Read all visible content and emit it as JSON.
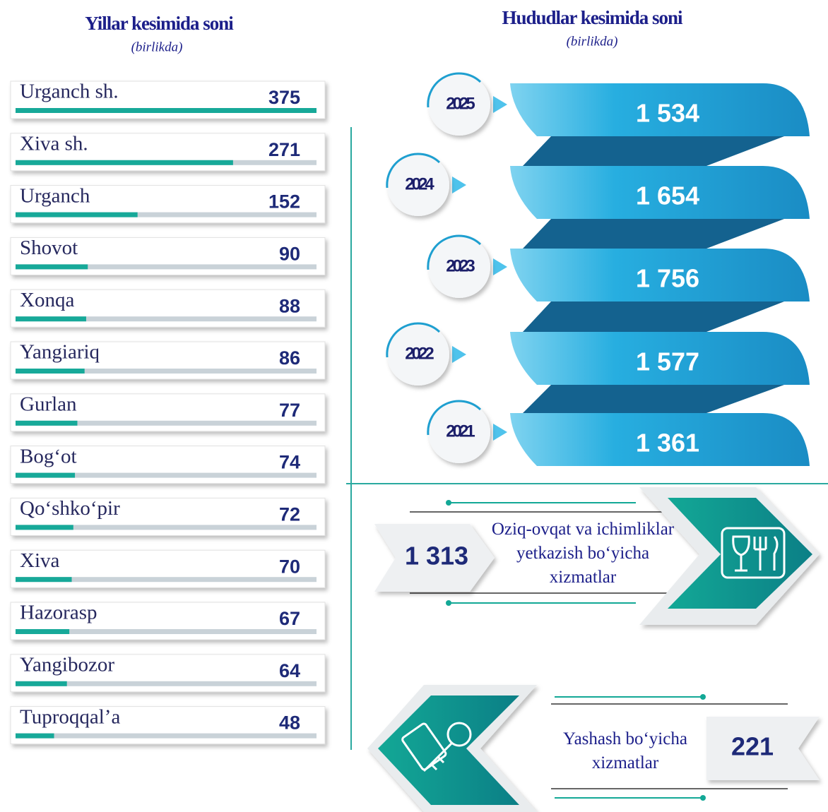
{
  "chart_data": [
    {
      "type": "bar",
      "orientation": "horizontal",
      "title": "Yillar kesimida soni",
      "subtitle": "(birlikda)",
      "categories": [
        "Urganch sh.",
        "Xiva sh.",
        "Urganch",
        "Shovot",
        "Xonqa",
        "Yangiariq",
        "Gurlan",
        "Bog‘ot",
        "Qo‘shko‘pir",
        "Xiva",
        "Hazorasp",
        "Yangibozor",
        "Tuproqqal’a"
      ],
      "values": [
        375,
        271,
        152,
        90,
        88,
        86,
        77,
        74,
        72,
        70,
        67,
        64,
        48
      ],
      "color": "#17a999"
    },
    {
      "type": "ribbon",
      "title": "Hududlar kesimida soni",
      "subtitle": "(birlikda)",
      "categories": [
        "2025",
        "2024",
        "2023",
        "2022",
        "2021"
      ],
      "values": [
        1534,
        1654,
        1756,
        1577,
        1361
      ],
      "value_labels": [
        "1 534",
        "1 654",
        "1 756",
        "1 577",
        "1 361"
      ],
      "color": "#1b9dd1"
    }
  ],
  "services": [
    {
      "value": 1313,
      "value_label": "1 313",
      "label": "Oziq-ovqat va ichimliklar yetkazish bo‘yicha xizmatlar"
    },
    {
      "value": 221,
      "label": "Yashash bo‘yicha xizmatlar"
    }
  ]
}
